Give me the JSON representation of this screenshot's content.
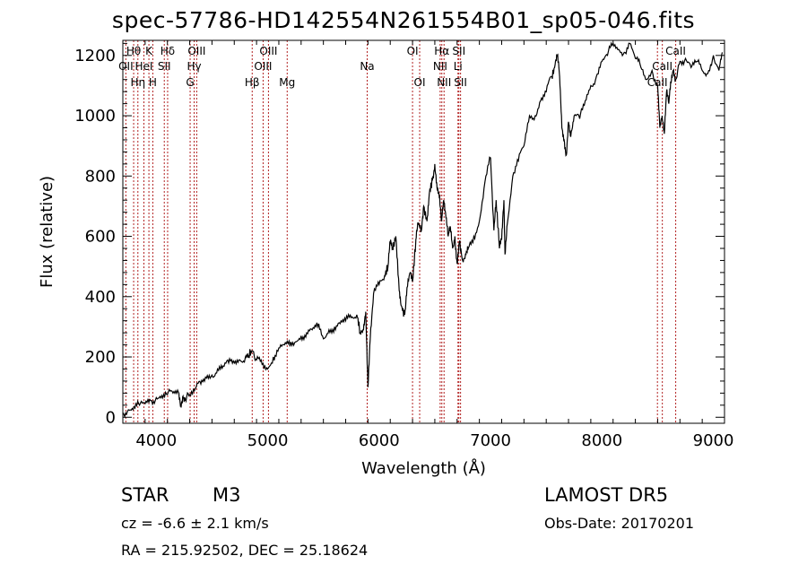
{
  "header": {
    "title": "spec-57786-HD142554N261554B01_sp05-046.fits"
  },
  "footer": {
    "object_class": "STAR",
    "subclass": "M3",
    "redshift": "cz = -6.6 ± 2.1 km/s",
    "coordinates": "RA = 215.92502, DEC =  25.18624",
    "survey": "LAMOST  DR5",
    "obs_date": "Obs-Date: 20170201"
  },
  "colors": {
    "line_marker": "#b22222",
    "spectrum": "#000000"
  },
  "chart_data": {
    "type": "line",
    "xlabel": "Wavelength (Å)",
    "ylabel": "Flux (relative)",
    "xlim": [
      3700,
      9100
    ],
    "ylim": [
      -20,
      1250
    ],
    "xticks": [
      4000,
      5000,
      6000,
      7000,
      8000,
      9000
    ],
    "yticks": [
      0,
      200,
      400,
      600,
      800,
      1000,
      1200
    ],
    "grid": false,
    "series": [
      {
        "x": [
          3700,
          3750,
          3800,
          3850,
          3900,
          3950,
          4000,
          4050,
          4100,
          4150,
          4200,
          4220,
          4240,
          4260,
          4300,
          4350,
          4400,
          4450,
          4500,
          4550,
          4600,
          4650,
          4700,
          4750,
          4800,
          4830,
          4860,
          4900,
          4950,
          5000,
          5050,
          5100,
          5150,
          5200,
          5250,
          5300,
          5350,
          5400,
          5450,
          5500,
          5550,
          5600,
          5650,
          5700,
          5750,
          5800,
          5830,
          5860,
          5880,
          5900,
          5920,
          5950,
          6000,
          6050,
          6080,
          6100,
          6120,
          6150,
          6180,
          6200,
          6230,
          6250,
          6280,
          6300,
          6330,
          6350,
          6380,
          6400,
          6430,
          6450,
          6480,
          6500,
          6520,
          6540,
          6560,
          6580,
          6600,
          6620,
          6640,
          6660,
          6680,
          6700,
          6720,
          6750,
          6780,
          6800,
          6850,
          6900,
          6950,
          7000,
          7030,
          7050,
          7080,
          7100,
          7120,
          7130,
          7150,
          7200,
          7250,
          7300,
          7350,
          7400,
          7450,
          7500,
          7550,
          7580,
          7600,
          7620,
          7640,
          7660,
          7680,
          7700,
          7720,
          7750,
          7800,
          7850,
          7900,
          7950,
          8000,
          8050,
          8100,
          8150,
          8200,
          8250,
          8300,
          8350,
          8400,
          8450,
          8500,
          8520,
          8540,
          8560,
          8580,
          8600,
          8620,
          8640,
          8660,
          8700,
          8750,
          8800,
          8850,
          8900,
          8950,
          9000,
          9050,
          9080
        ],
        "y": [
          15,
          25,
          35,
          40,
          45,
          55,
          65,
          72,
          75,
          80,
          82,
          40,
          70,
          60,
          75,
          95,
          110,
          130,
          140,
          160,
          170,
          180,
          180,
          190,
          200,
          205,
          220,
          190,
          175,
          160,
          200,
          230,
          240,
          235,
          250,
          270,
          280,
          290,
          300,
          260,
          290,
          300,
          310,
          320,
          330,
          340,
          280,
          290,
          350,
          100,
          260,
          410,
          440,
          470,
          500,
          580,
          560,
          600,
          420,
          370,
          340,
          430,
          480,
          450,
          590,
          640,
          620,
          700,
          650,
          740,
          790,
          840,
          760,
          730,
          650,
          720,
          660,
          600,
          630,
          560,
          600,
          510,
          580,
          520,
          540,
          560,
          600,
          650,
          780,
          860,
          620,
          720,
          560,
          590,
          720,
          540,
          640,
          800,
          850,
          900,
          1000,
          1000,
          1050,
          1080,
          1130,
          1170,
          1200,
          1130,
          960,
          920,
          870,
          980,
          930,
          1000,
          990,
          1050,
          1100,
          1130,
          1180,
          1200,
          1240,
          1220,
          1210,
          1240,
          1190,
          1160,
          1120,
          1150,
          1100,
          960,
          1000,
          940,
          1080,
          1040,
          1110,
          1150,
          1120,
          1180,
          1190,
          1160,
          1180,
          1150,
          1140,
          1200,
          1150,
          1210
        ]
      }
    ],
    "line_markers": [
      {
        "wavelength": 3727,
        "label": "OII",
        "row": 1
      },
      {
        "wavelength": 3797,
        "label": "Hθ",
        "row": 0
      },
      {
        "wavelength": 3835,
        "label": "Hη",
        "row": 2
      },
      {
        "wavelength": 3889,
        "label": "HeI",
        "row": 1
      },
      {
        "wavelength": 3934,
        "label": "K",
        "row": 0
      },
      {
        "wavelength": 3969,
        "label": "H",
        "row": 2
      },
      {
        "wavelength": 4072,
        "label": "SII",
        "row": 1
      },
      {
        "wavelength": 4102,
        "label": "Hδ",
        "row": 0
      },
      {
        "wavelength": 4304,
        "label": "G",
        "row": 2
      },
      {
        "wavelength": 4340,
        "label": "Hγ",
        "row": 1
      },
      {
        "wavelength": 4363,
        "label": "OIII",
        "row": 0
      },
      {
        "wavelength": 4861,
        "label": "Hβ",
        "row": 2
      },
      {
        "wavelength": 4959,
        "label": "OIII",
        "row": 1
      },
      {
        "wavelength": 5007,
        "label": "OIII",
        "row": 0
      },
      {
        "wavelength": 5175,
        "label": "Mg",
        "row": 2
      },
      {
        "wavelength": 5893,
        "label": "Na",
        "row": 1
      },
      {
        "wavelength": 6300,
        "label": "OI",
        "row": 0
      },
      {
        "wavelength": 6364,
        "label": "OI",
        "row": 2
      },
      {
        "wavelength": 6548,
        "label": "NII",
        "row": 1
      },
      {
        "wavelength": 6563,
        "label": "Hα",
        "row": 0
      },
      {
        "wavelength": 6583,
        "label": "NII",
        "row": 2
      },
      {
        "wavelength": 6708,
        "label": "Li",
        "row": 1
      },
      {
        "wavelength": 6716,
        "label": "SII",
        "row": 0
      },
      {
        "wavelength": 6731,
        "label": "SII",
        "row": 2
      },
      {
        "wavelength": 8498,
        "label": "CaII",
        "row": 2
      },
      {
        "wavelength": 8542,
        "label": "CaII",
        "row": 1
      },
      {
        "wavelength": 8662,
        "label": "CaII",
        "row": 0
      }
    ]
  }
}
